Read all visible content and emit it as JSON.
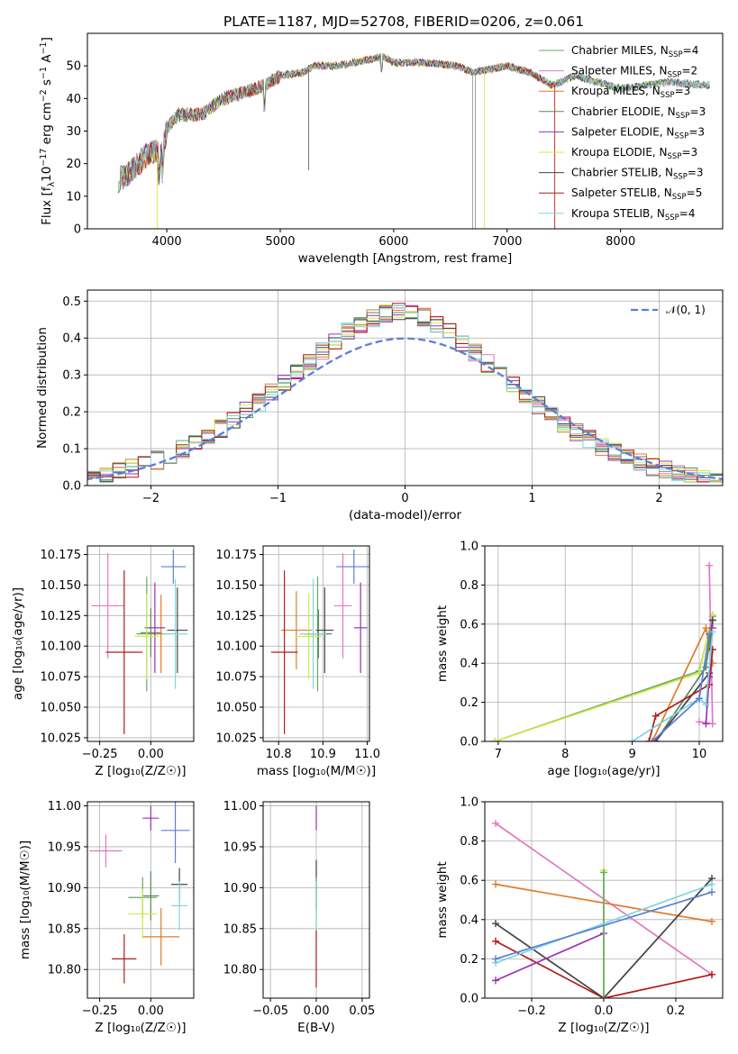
{
  "figure": {
    "title": "PLATE=1187, MJD=52708, FIBERID=0206, z=0.061"
  },
  "models": [
    {
      "name": "Chabrier MILES",
      "nssp": "4",
      "color": "#66aa66"
    },
    {
      "name": "Salpeter MILES",
      "nssp": "2",
      "color": "#e377c2"
    },
    {
      "name": "Kroupa MILES",
      "nssp": "3",
      "color": "#e07b28"
    },
    {
      "name": "Chabrier ELODIE",
      "nssp": "3",
      "color": "#5a8a5a"
    },
    {
      "name": "Salpeter ELODIE",
      "nssp": "3",
      "color": "#9b30b8"
    },
    {
      "name": "Kroupa ELODIE",
      "nssp": "3",
      "color": "#d4e84a"
    },
    {
      "name": "Chabrier STELIB",
      "nssp": "3",
      "color": "#444444"
    },
    {
      "name": "Salpeter STELIB",
      "nssp": "5",
      "color": "#b01c1c"
    },
    {
      "name": "Kroupa STELIB",
      "nssp": "4",
      "color": "#7fd6dd"
    }
  ],
  "chart_data": [
    {
      "id": "spectrum",
      "type": "line",
      "xlabel": "wavelength [Angstrom, rest frame]",
      "ylabel_parts": {
        "pre": "Flux [f",
        "sub": "λ",
        "mid": "10",
        "sup1": "−17",
        "post": " erg cm",
        "sup2": "−2",
        "post2": " s",
        "sup3": "−1",
        "post3": " A",
        "sup4": "−1",
        "end": "]"
      },
      "xlim": [
        3300,
        8900
      ],
      "ylim": [
        0,
        60
      ],
      "xticks": [
        4000,
        5000,
        6000,
        7000,
        8000
      ],
      "yticks": [
        0,
        10,
        20,
        30,
        40,
        50
      ],
      "grid": false,
      "legend_position": "upper right",
      "continuum": [
        [
          3570,
          15
        ],
        [
          3700,
          18
        ],
        [
          3800,
          22
        ],
        [
          3900,
          24
        ],
        [
          3950,
          22
        ],
        [
          4000,
          31
        ],
        [
          4100,
          35
        ],
        [
          4300,
          35
        ],
        [
          4500,
          40
        ],
        [
          4700,
          42
        ],
        [
          4860,
          44
        ],
        [
          5000,
          47
        ],
        [
          5200,
          48
        ],
        [
          5300,
          50
        ],
        [
          5500,
          50
        ],
        [
          5800,
          52
        ],
        [
          5900,
          53
        ],
        [
          6000,
          51
        ],
        [
          6300,
          51
        ],
        [
          6560,
          50
        ],
        [
          6700,
          48
        ],
        [
          7000,
          50
        ],
        [
          7200,
          48
        ],
        [
          7400,
          44
        ],
        [
          7600,
          47
        ],
        [
          7800,
          45
        ],
        [
          8000,
          43
        ],
        [
          8200,
          44
        ],
        [
          8400,
          45
        ],
        [
          8800,
          44
        ]
      ],
      "spikes": [
        {
          "x": 5250,
          "bottom": 18
        },
        {
          "x": 6695,
          "bottom": 0
        },
        {
          "x": 6720,
          "bottom": 0
        },
        {
          "x": 6800,
          "bottom": 0
        },
        {
          "x": 7420,
          "bottom": 0
        },
        {
          "x": 3915,
          "bottom": 0
        }
      ]
    },
    {
      "id": "residual-histogram",
      "type": "histogram",
      "xlabel": "(data-model)/error",
      "ylabel": "Normed distribution",
      "xlim": [
        -2.5,
        2.5
      ],
      "ylim": [
        0,
        0.53
      ],
      "xticks": [
        -2,
        -1,
        0,
        1,
        2
      ],
      "yticks": [
        0.0,
        0.1,
        0.2,
        0.3,
        0.4,
        0.5
      ],
      "grid": true,
      "legend_position": "upper right",
      "reference_curve": {
        "label": "𝒩(0, 1)",
        "color": "#5b7fd6",
        "mean": 0,
        "sigma": 1
      },
      "bin_width": 0.1
    },
    {
      "id": "age-vs-Z",
      "type": "errorbar",
      "xlabel": "Z [log₁₀(Z/Z☉)]",
      "ylabel": "age  [log₁₀(age/yr)]",
      "xlim": [
        -0.31,
        0.21
      ],
      "ylim": [
        10.022,
        10.182
      ],
      "xticks": [
        -0.25,
        0.0
      ],
      "yticks": [
        10.025,
        10.05,
        10.075,
        10.1,
        10.125,
        10.15,
        10.175
      ],
      "grid": true,
      "points": [
        {
          "model": 1,
          "x": -0.21,
          "y": 10.133,
          "xerr": 0.08,
          "yerr": 0.043
        },
        {
          "model": 0,
          "x": -0.02,
          "y": 10.11,
          "xerr": 0.05,
          "yerr": 0.047
        },
        {
          "model": 2,
          "x": 0.05,
          "y": 10.11,
          "xerr": 0.04,
          "yerr": 0.032
        },
        {
          "model": 3,
          "x": 0.0,
          "y": 10.111,
          "xerr": 0.05,
          "yerr": 0.02
        },
        {
          "model": 4,
          "x": 0.02,
          "y": 10.115,
          "xerr": 0.05,
          "yerr": 0.037
        },
        {
          "model": 5,
          "x": -0.02,
          "y": 10.108,
          "xerr": 0.06,
          "yerr": 0.035
        },
        {
          "model": 6,
          "x": 0.13,
          "y": 10.113,
          "xerr": 0.05,
          "yerr": 0.035
        },
        {
          "model": 7,
          "x": -0.13,
          "y": 10.095,
          "xerr": 0.09,
          "yerr": 0.067
        },
        {
          "model": 8,
          "x": 0.12,
          "y": 10.11,
          "xerr": 0.06,
          "yerr": 0.045
        },
        {
          "model": 1,
          "x": 0.11,
          "y": 10.165,
          "xerr": 0.06,
          "yerr": 0.014,
          "color_override": "#5b7fd6"
        }
      ]
    },
    {
      "id": "age-vs-mass",
      "type": "errorbar",
      "xlabel": "mass [log₁₀(M/M☉)]",
      "ylabel": "",
      "xlim": [
        10.765,
        11.005
      ],
      "ylim": [
        10.022,
        10.182
      ],
      "xticks": [
        10.8,
        10.9,
        11.0
      ],
      "xticklabels": [
        "10.8",
        "10.9",
        "11.0"
      ],
      "yticks": [
        10.025,
        10.05,
        10.075,
        10.1,
        10.125,
        10.15,
        10.175
      ],
      "grid": true,
      "points": [
        {
          "model": 1,
          "x": 10.945,
          "y": 10.133,
          "xerr": 0.02,
          "yerr": 0.043
        },
        {
          "model": 0,
          "x": 10.888,
          "y": 10.11,
          "xerr": 0.025,
          "yerr": 0.047
        },
        {
          "model": 2,
          "x": 10.84,
          "y": 10.113,
          "xerr": 0.035,
          "yerr": 0.032
        },
        {
          "model": 3,
          "x": 10.89,
          "y": 10.11,
          "xerr": 0.03,
          "yerr": 0.02
        },
        {
          "model": 4,
          "x": 10.985,
          "y": 10.115,
          "xerr": 0.015,
          "yerr": 0.037
        },
        {
          "model": 5,
          "x": 10.868,
          "y": 10.108,
          "xerr": 0.03,
          "yerr": 0.035
        },
        {
          "model": 6,
          "x": 10.904,
          "y": 10.113,
          "xerr": 0.02,
          "yerr": 0.035
        },
        {
          "model": 7,
          "x": 10.813,
          "y": 10.095,
          "xerr": 0.03,
          "yerr": 0.067
        },
        {
          "model": 8,
          "x": 10.878,
          "y": 10.11,
          "xerr": 0.03,
          "yerr": 0.045
        },
        {
          "model": 1,
          "x": 10.97,
          "y": 10.165,
          "xerr": 0.04,
          "yerr": 0.014,
          "color_override": "#5b7fd6"
        }
      ]
    },
    {
      "id": "massweight-vs-age",
      "type": "line",
      "xlabel": "age  [log₁₀(age/yr)]",
      "ylabel": "mass weight",
      "xlim": [
        6.8,
        10.35
      ],
      "ylim": [
        0,
        1.0
      ],
      "xticks": [
        7,
        8,
        9,
        10
      ],
      "yticks": [
        0.0,
        0.2,
        0.4,
        0.6,
        0.8,
        1.0
      ],
      "grid": true,
      "series": [
        {
          "model": 0,
          "x": [
            6.95,
            10.0,
            10.2
          ],
          "y": [
            0.0,
            0.36,
            0.64
          ]
        },
        {
          "model": 5,
          "x": [
            6.95,
            10.0,
            10.2
          ],
          "y": [
            0.0,
            0.35,
            0.65
          ]
        },
        {
          "model": 2,
          "x": [
            9.3,
            10.1,
            10.2
          ],
          "y": [
            0.0,
            0.58,
            0.4
          ]
        },
        {
          "model": 1,
          "x": [
            10.15,
            10.2,
            10.0
          ],
          "y": [
            0.9,
            0.09,
            0.1
          ]
        },
        {
          "model": 3,
          "x": [
            9.35,
            10.1,
            10.2
          ],
          "y": [
            0.0,
            0.38,
            0.62
          ]
        },
        {
          "model": 6,
          "x": [
            9.35,
            10.15,
            10.2
          ],
          "y": [
            0.0,
            0.35,
            0.62
          ]
        },
        {
          "model": 7,
          "x": [
            9.25,
            9.35,
            10.15,
            10.2
          ],
          "y": [
            0.0,
            0.13,
            0.29,
            0.47
          ]
        },
        {
          "model": 4,
          "x": [
            10.1,
            10.15,
            10.2
          ],
          "y": [
            0.09,
            0.33,
            0.58
          ]
        },
        {
          "model": 8,
          "x": [
            9.0,
            10.0,
            10.1,
            10.2
          ],
          "y": [
            0.0,
            0.22,
            0.19,
            0.56
          ]
        },
        {
          "model": 1,
          "x": [
            9.3,
            10.0,
            10.15
          ],
          "y": [
            0.0,
            0.22,
            0.55
          ],
          "color_override": "#5b7fd6"
        }
      ]
    },
    {
      "id": "mass-vs-Z",
      "type": "errorbar",
      "xlabel": "Z [log₁₀(Z/Z☉)]",
      "ylabel": "mass [log₁₀(M/M☉)]",
      "xlim": [
        -0.31,
        0.21
      ],
      "ylim": [
        10.765,
        11.005
      ],
      "xticks": [
        -0.25,
        0.0
      ],
      "yticks": [
        10.8,
        10.85,
        10.9,
        10.95,
        11.0
      ],
      "grid": true,
      "points": [
        {
          "model": 1,
          "x": -0.22,
          "y": 10.945,
          "xerr": 0.08,
          "yerr": 0.02
        },
        {
          "model": 0,
          "x": -0.04,
          "y": 10.888,
          "xerr": 0.07,
          "yerr": 0.025
        },
        {
          "model": 2,
          "x": 0.05,
          "y": 10.84,
          "xerr": 0.09,
          "yerr": 0.035
        },
        {
          "model": 3,
          "x": -0.0,
          "y": 10.89,
          "xerr": 0.04,
          "yerr": 0.03
        },
        {
          "model": 4,
          "x": 0.0,
          "y": 10.985,
          "xerr": 0.04,
          "yerr": 0.015
        },
        {
          "model": 5,
          "x": -0.04,
          "y": 10.868,
          "xerr": 0.07,
          "yerr": 0.03
        },
        {
          "model": 6,
          "x": 0.14,
          "y": 10.904,
          "xerr": 0.04,
          "yerr": 0.02
        },
        {
          "model": 7,
          "x": -0.13,
          "y": 10.813,
          "xerr": 0.06,
          "yerr": 0.03
        },
        {
          "model": 8,
          "x": 0.14,
          "y": 10.878,
          "xerr": 0.04,
          "yerr": 0.03
        },
        {
          "model": 1,
          "x": 0.12,
          "y": 10.97,
          "xerr": 0.07,
          "yerr": 0.04,
          "color_override": "#5b7fd6"
        }
      ]
    },
    {
      "id": "mass-vs-EBV",
      "type": "errorbar",
      "xlabel": "E(B-V)",
      "ylabel": "",
      "xlim": [
        -0.058,
        0.058
      ],
      "ylim": [
        10.765,
        11.005
      ],
      "xticks": [
        -0.05,
        0.0,
        0.05
      ],
      "xticklabels": [
        "−0.05",
        "0.00",
        "0.05"
      ],
      "yticks": [
        10.8,
        10.85,
        10.9,
        10.95,
        11.0
      ],
      "grid": true,
      "points": [
        {
          "model": 4,
          "x": 0.0,
          "y": 10.985,
          "xerr": 0.0,
          "yerr": 0.015
        },
        {
          "model": 6,
          "x": 0.0,
          "y": 10.904,
          "xerr": 0.0,
          "yerr": 0.03
        },
        {
          "model": 0,
          "x": 0.0,
          "y": 10.888,
          "xerr": 0.0,
          "yerr": 0.025
        },
        {
          "model": 5,
          "x": 0.0,
          "y": 10.868,
          "xerr": 0.0,
          "yerr": 0.03
        },
        {
          "model": 8,
          "x": 0.0,
          "y": 10.878,
          "xerr": 0.0,
          "yerr": 0.03
        },
        {
          "model": 7,
          "x": 0.0,
          "y": 10.813,
          "xerr": 0.0,
          "yerr": 0.035
        }
      ]
    },
    {
      "id": "massweight-vs-Z",
      "type": "line",
      "xlabel": "Z [log₁₀(Z/Z☉)]",
      "ylabel": "mass weight",
      "xlim": [
        -0.33,
        0.33
      ],
      "ylim": [
        0,
        1.0
      ],
      "xticks": [
        -0.2,
        0.0,
        0.2
      ],
      "xticklabels": [
        "−0.2",
        "0.0",
        "0.2"
      ],
      "yticks": [
        0.0,
        0.2,
        0.4,
        0.6,
        0.8,
        1.0
      ],
      "grid": true,
      "series": [
        {
          "model": 1,
          "x": [
            -0.3,
            0.3
          ],
          "y": [
            0.89,
            0.12
          ]
        },
        {
          "model": 2,
          "x": [
            -0.3,
            0.3
          ],
          "y": [
            0.58,
            0.39
          ]
        },
        {
          "model": 6,
          "x": [
            -0.3,
            0.0,
            0.3
          ],
          "y": [
            0.38,
            0.0,
            0.61
          ]
        },
        {
          "model": 7,
          "x": [
            -0.3,
            0.0,
            0.3
          ],
          "y": [
            0.29,
            0.0,
            0.12
          ]
        },
        {
          "model": 4,
          "x": [
            -0.3,
            0.0
          ],
          "y": [
            0.09,
            0.33
          ]
        },
        {
          "model": 5,
          "x": [
            0.0,
            0.0
          ],
          "y": [
            0.0,
            0.65
          ]
        },
        {
          "model": 0,
          "x": [
            0.0,
            0.0
          ],
          "y": [
            0.0,
            0.64
          ]
        },
        {
          "model": 8,
          "x": [
            -0.3,
            0.3
          ],
          "y": [
            0.18,
            0.58
          ]
        },
        {
          "model": 1,
          "x": [
            -0.3,
            0.3
          ],
          "y": [
            0.2,
            0.54
          ],
          "color_override": "#5b7fd6"
        }
      ]
    }
  ]
}
